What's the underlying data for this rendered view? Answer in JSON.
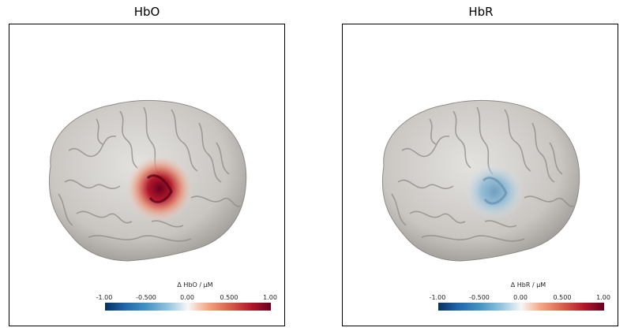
{
  "panels": [
    {
      "title": "HbO",
      "colorbar": {
        "label": "Δ HbO / μM",
        "ticks": [
          "-1.00",
          "-0.500",
          "0.00",
          "0.500",
          "1.00"
        ]
      },
      "activation_color": "#a51a2c"
    },
    {
      "title": "HbR",
      "colorbar": {
        "label": "Δ HbR / μM",
        "ticks": [
          "-1.00",
          "-0.500",
          "0.00",
          "0.500",
          "1.00"
        ]
      },
      "activation_color": "#7ea9c6"
    }
  ],
  "colormap": [
    "#053061",
    "#2166ac",
    "#4393c3",
    "#92c5de",
    "#f7f7f7",
    "#f4a582",
    "#d6604d",
    "#b2182b",
    "#67001f"
  ],
  "brain_color": "#c9c6c2"
}
